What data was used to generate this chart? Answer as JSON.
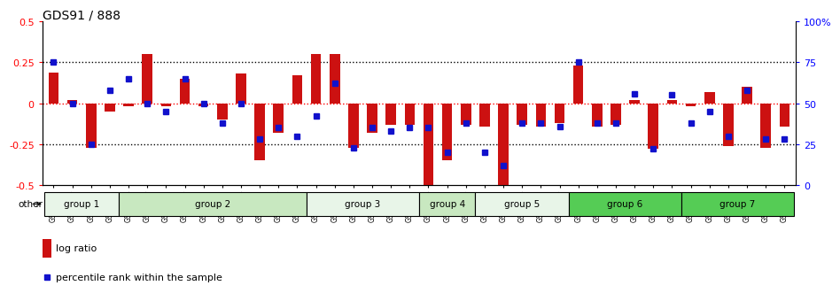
{
  "title": "GDS91 / 888",
  "samples": [
    "GSM1555",
    "GSM1556",
    "GSM1557",
    "GSM1558",
    "GSM1564",
    "GSM1550",
    "GSM1565",
    "GSM1566",
    "GSM1567",
    "GSM1568",
    "GSM1574",
    "GSM1575",
    "GSM1576",
    "GSM1577",
    "GSM1578",
    "GSM1584",
    "GSM1585",
    "GSM1586",
    "GSM1587",
    "GSM1588",
    "GSM1594",
    "GSM1595",
    "GSM1596",
    "GSM1597",
    "GSM1598",
    "GSM1604",
    "GSM1605",
    "GSM1606",
    "GSM1607",
    "GSM1608",
    "GSM1614",
    "GSM1615",
    "GSM1616",
    "GSM1617",
    "GSM1618",
    "GSM1624",
    "GSM1625",
    "GSM1626",
    "GSM1627",
    "GSM1628"
  ],
  "log_ratio": [
    0.19,
    0.02,
    -0.27,
    -0.05,
    -0.02,
    0.3,
    -0.02,
    0.15,
    -0.02,
    -0.1,
    0.18,
    -0.35,
    -0.18,
    0.17,
    0.3,
    0.3,
    -0.27,
    -0.18,
    -0.13,
    -0.13,
    -0.5,
    -0.35,
    -0.13,
    -0.14,
    -0.5,
    -0.13,
    -0.14,
    -0.12,
    0.23,
    -0.14,
    -0.13,
    0.02,
    -0.28,
    0.02,
    -0.02,
    0.07,
    -0.26,
    0.1,
    -0.27,
    -0.14
  ],
  "percentile_rank": [
    75,
    50,
    25,
    58,
    65,
    50,
    45,
    65,
    50,
    38,
    50,
    28,
    35,
    30,
    42,
    62,
    23,
    35,
    33,
    35,
    35,
    20,
    38,
    20,
    12,
    38,
    38,
    36,
    75,
    38,
    38,
    56,
    22,
    55,
    38,
    45,
    30,
    58,
    28,
    28
  ],
  "group_definitions": [
    {
      "label": "group 1",
      "start": 0,
      "end": 3,
      "color": "#e8f5e8"
    },
    {
      "label": "group 2",
      "start": 4,
      "end": 13,
      "color": "#c8e8c0"
    },
    {
      "label": "group 3",
      "start": 14,
      "end": 19,
      "color": "#e8f5e8"
    },
    {
      "label": "group 4",
      "start": 20,
      "end": 22,
      "color": "#c8e8c0"
    },
    {
      "label": "group 5",
      "start": 23,
      "end": 27,
      "color": "#e8f5e8"
    },
    {
      "label": "group 6",
      "start": 28,
      "end": 33,
      "color": "#55cc55"
    },
    {
      "label": "group 7",
      "start": 34,
      "end": 39,
      "color": "#55cc55"
    }
  ],
  "ylim": [
    -0.5,
    0.5
  ],
  "yticks_left": [
    -0.5,
    -0.25,
    0,
    0.25,
    0.5
  ],
  "yticks_right": [
    0,
    25,
    50,
    75,
    100
  ],
  "bar_color": "#cc1111",
  "dot_color": "#1111cc"
}
